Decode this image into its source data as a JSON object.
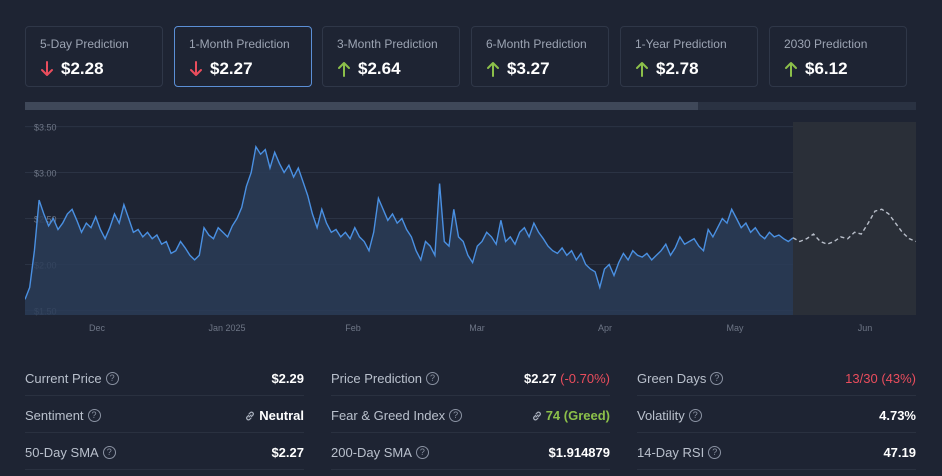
{
  "predictions": [
    {
      "label": "5-Day Prediction",
      "value": "$2.28",
      "direction": "down"
    },
    {
      "label": "1-Month Prediction",
      "value": "$2.27",
      "direction": "down"
    },
    {
      "label": "3-Month Prediction",
      "value": "$2.64",
      "direction": "up"
    },
    {
      "label": "6-Month Prediction",
      "value": "$3.27",
      "direction": "up"
    },
    {
      "label": "1-Year Prediction",
      "value": "$2.78",
      "direction": "up"
    },
    {
      "label": "2030 Prediction",
      "value": "$6.12",
      "direction": "up"
    }
  ],
  "colors": {
    "up": "#8cc04a",
    "down": "#ea4d5d",
    "line": "#4a90e2",
    "forecast": "#b8bec9"
  },
  "chart_data": {
    "type": "line",
    "y_ticks": [
      "$3.50",
      "$3.00",
      "$2.50",
      "$2.00",
      "$1.50"
    ],
    "x_ticks": [
      "Dec",
      "Jan 2025",
      "Feb",
      "Mar",
      "Apr",
      "May",
      "Jun"
    ],
    "ylim": [
      1.45,
      3.55
    ],
    "series": [
      {
        "name": "price",
        "values": [
          1.62,
          1.75,
          2.15,
          2.7,
          2.55,
          2.42,
          2.5,
          2.38,
          2.45,
          2.55,
          2.6,
          2.48,
          2.35,
          2.45,
          2.4,
          2.52,
          2.38,
          2.28,
          2.4,
          2.55,
          2.45,
          2.65,
          2.5,
          2.35,
          2.38,
          2.3,
          2.35,
          2.28,
          2.32,
          2.22,
          2.25,
          2.12,
          2.15,
          2.25,
          2.18,
          2.1,
          2.05,
          2.1,
          2.4,
          2.32,
          2.28,
          2.4,
          2.35,
          2.3,
          2.42,
          2.5,
          2.62,
          2.85,
          3.0,
          3.28,
          3.2,
          3.25,
          3.05,
          3.22,
          3.1,
          3.0,
          3.08,
          2.95,
          3.05,
          2.9,
          2.75,
          2.55,
          2.4,
          2.6,
          2.45,
          2.35,
          2.38,
          2.3,
          2.35,
          2.28,
          2.4,
          2.3,
          2.25,
          2.15,
          2.35,
          2.72,
          2.6,
          2.48,
          2.55,
          2.45,
          2.5,
          2.38,
          2.3,
          2.15,
          2.05,
          2.25,
          2.2,
          2.1,
          2.88,
          2.25,
          2.2,
          2.6,
          2.3,
          2.25,
          2.1,
          2.02,
          2.2,
          2.25,
          2.35,
          2.3,
          2.22,
          2.48,
          2.25,
          2.3,
          2.22,
          2.35,
          2.4,
          2.3,
          2.45,
          2.35,
          2.28,
          2.2,
          2.15,
          2.12,
          2.18,
          2.1,
          2.15,
          2.05,
          2.12,
          2.0,
          1.95,
          1.92,
          1.75,
          1.95,
          2.0,
          1.88,
          2.02,
          2.12,
          2.05,
          2.15,
          2.1,
          2.08,
          2.12,
          2.05,
          2.1,
          2.15,
          2.22,
          2.1,
          2.18,
          2.3,
          2.22,
          2.25,
          2.28,
          2.2,
          2.15,
          2.38,
          2.3,
          2.4,
          2.5,
          2.45,
          2.6,
          2.5,
          2.4,
          2.45,
          2.35,
          2.4,
          2.32,
          2.28,
          2.35,
          2.3,
          2.32,
          2.28,
          2.25,
          2.29
        ]
      },
      {
        "name": "forecast",
        "values": [
          2.29,
          2.25,
          2.28,
          2.33,
          2.25,
          2.22,
          2.25,
          2.3,
          2.28,
          2.35,
          2.33,
          2.45,
          2.58,
          2.6,
          2.55,
          2.45,
          2.35,
          2.28,
          2.25
        ]
      }
    ]
  },
  "stats": [
    {
      "label": "Current Price",
      "value": "$2.29",
      "help": true
    },
    {
      "label": "Price Prediction",
      "value": "$2.27",
      "extra": "(-0.70%)",
      "help": true
    },
    {
      "label": "Green Days",
      "value": "13/30 (43%)",
      "help": true,
      "tone": "red"
    },
    {
      "label": "Sentiment",
      "value": "Neutral",
      "help": true,
      "link": true
    },
    {
      "label": "Fear & Greed Index",
      "value": "74 (Greed)",
      "help": true,
      "link": true,
      "tone": "green"
    },
    {
      "label": "Volatility",
      "value": "4.73%",
      "help": true
    },
    {
      "label": "50-Day SMA",
      "value": "$2.27",
      "help": true
    },
    {
      "label": "200-Day SMA",
      "value": "$1.914879",
      "help": true
    },
    {
      "label": "14-Day RSI",
      "value": "47.19",
      "help": true
    }
  ],
  "help_glyph": "?"
}
